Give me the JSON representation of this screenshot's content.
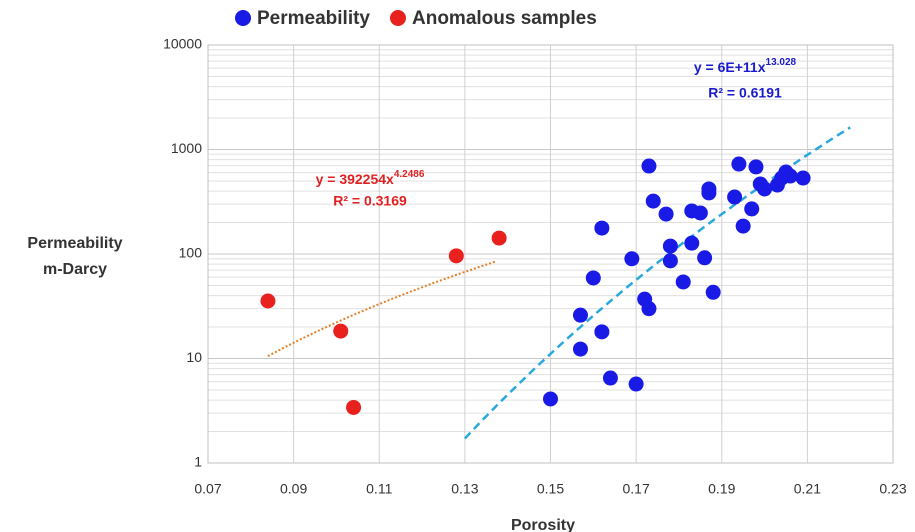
{
  "chart_data": {
    "type": "scatter",
    "xlabel": "Porosity",
    "ylabel": [
      "Permeability",
      "m-Darcy"
    ],
    "xlim": [
      0.07,
      0.23
    ],
    "xticks": [
      0.07,
      0.09,
      0.11,
      0.13,
      0.15,
      0.17,
      0.19,
      0.21,
      0.23
    ],
    "ylim": [
      1,
      10000
    ],
    "yticks": [
      1,
      10,
      100,
      1000,
      10000
    ],
    "yscale": "log",
    "grid": true,
    "legend": "top",
    "series": [
      {
        "name": "Permeability",
        "color": "#1a1ae6",
        "x": [
          0.15,
          0.157,
          0.157,
          0.16,
          0.162,
          0.162,
          0.164,
          0.17,
          0.169,
          0.172,
          0.173,
          0.173,
          0.174,
          0.177,
          0.178,
          0.178,
          0.181,
          0.183,
          0.183,
          0.185,
          0.186,
          0.187,
          0.187,
          0.188,
          0.194,
          0.193,
          0.195,
          0.197,
          0.198,
          0.199,
          0.2,
          0.203,
          0.204,
          0.205,
          0.206,
          0.209
        ],
        "values": [
          4.1,
          12.3,
          26,
          59,
          177,
          18,
          6.5,
          5.7,
          90,
          37,
          30,
          695,
          321,
          241,
          119,
          86,
          54,
          258,
          127,
          247,
          92,
          419,
          384,
          43,
          726,
          351,
          185,
          270,
          681,
          468,
          419,
          457,
          533,
          609,
          557,
          533
        ]
      },
      {
        "name": "Anomalous samples",
        "color": "#e8201e",
        "x": [
          0.084,
          0.101,
          0.104,
          0.128,
          0.138
        ],
        "values": [
          35.5,
          18.3,
          3.4,
          96,
          142
        ]
      }
    ],
    "trendlines": [
      {
        "color": "#29a8dd",
        "coef": 600000000000,
        "power": 13.028,
        "x_range": [
          0.13,
          0.22
        ],
        "equation": "y = 6E+11x",
        "exponent": "13.028",
        "r2": "R² = 0.6191",
        "text_color": "#1a1acd"
      },
      {
        "color": "#e5802a",
        "coef": 392254,
        "power": 4.2486,
        "x_range": [
          0.084,
          0.137
        ],
        "equation": "y = 392254x",
        "exponent": "4.2486",
        "r2": "R² = 0.3169",
        "text_color": "#e02020"
      }
    ]
  }
}
